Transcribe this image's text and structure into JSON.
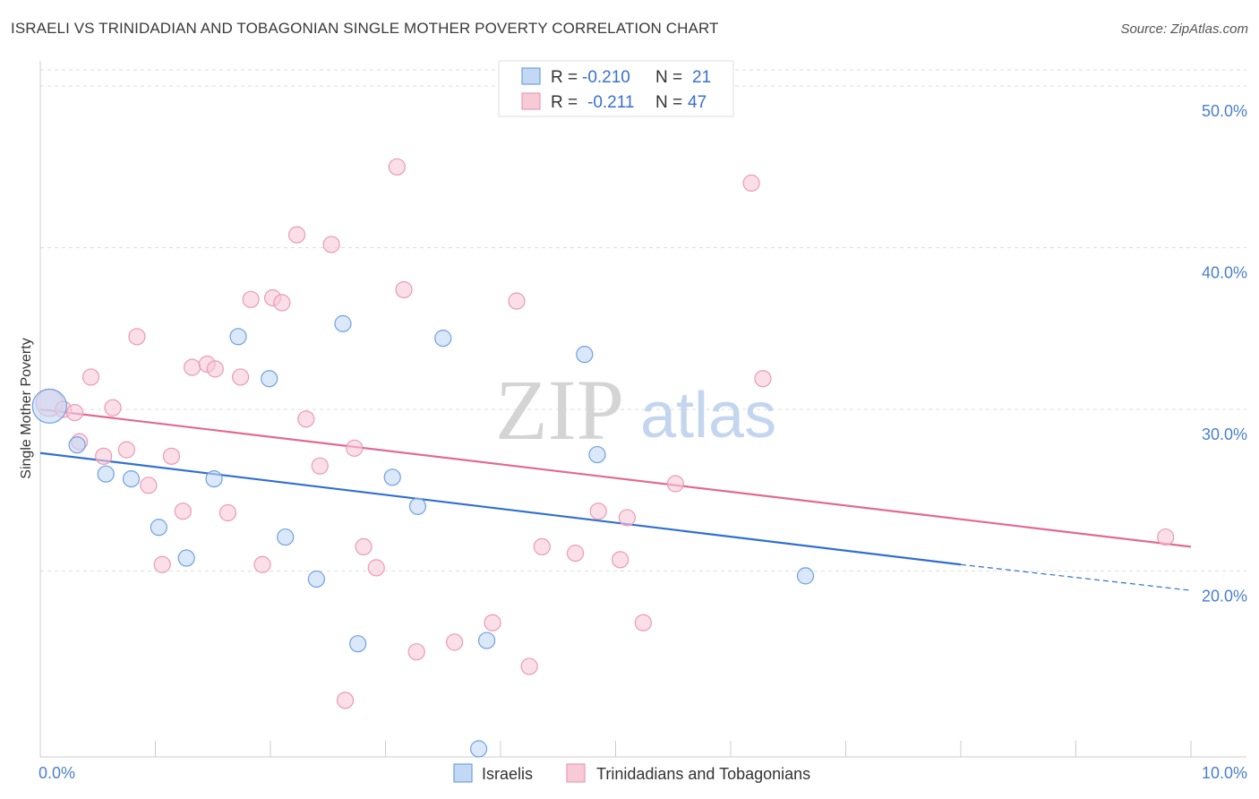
{
  "title": "ISRAELI VS TRINIDADIAN AND TOBAGONIAN SINGLE MOTHER POVERTY CORRELATION CHART",
  "source": "Source: ZipAtlas.com",
  "watermark": {
    "zip": "ZIP",
    "atlas": "atlas"
  },
  "chart_data": {
    "type": "scatter",
    "title": "ISRAELI VS TRINIDADIAN AND TOBAGONIAN SINGLE MOTHER POVERTY CORRELATION CHART",
    "xlabel": "",
    "ylabel": "Single Mother Poverty",
    "xlim": [
      0,
      10
    ],
    "ylim": [
      8.5,
      52
    ],
    "x_tick_labels": {
      "min": "0.0%",
      "max": "10.0%"
    },
    "y_ticks": [
      20,
      30,
      40,
      50
    ],
    "y_tick_labels": [
      "20.0%",
      "30.0%",
      "40.0%",
      "50.0%"
    ],
    "grid": true,
    "legend_position": "top-center",
    "series": [
      {
        "name": "Israelis",
        "color": "#6fa1e0",
        "fill": "#c3d8f5",
        "line_color": "#2f6fd0",
        "R": "-0.210",
        "N": "21",
        "trend": {
          "x0": 0,
          "y0": 27.3,
          "x1": 8.0,
          "y1": 20.4,
          "dash_to_x": 10,
          "dash_to_y": 18.8
        },
        "points": [
          [
            0.08,
            30.2
          ],
          [
            0.32,
            27.8
          ],
          [
            0.57,
            26.0
          ],
          [
            0.79,
            25.7
          ],
          [
            1.03,
            22.7
          ],
          [
            1.27,
            20.8
          ],
          [
            1.51,
            25.7
          ],
          [
            1.72,
            34.5
          ],
          [
            1.99,
            31.9
          ],
          [
            2.13,
            22.1
          ],
          [
            2.4,
            19.5
          ],
          [
            2.63,
            35.3
          ],
          [
            2.76,
            15.5
          ],
          [
            3.06,
            25.8
          ],
          [
            3.28,
            24.0
          ],
          [
            3.5,
            34.4
          ],
          [
            3.81,
            9.0
          ],
          [
            3.88,
            15.7
          ],
          [
            4.73,
            33.4
          ],
          [
            4.84,
            27.2
          ],
          [
            6.65,
            19.7
          ]
        ],
        "sizes": [
          38,
          18,
          18,
          18,
          18,
          18,
          18,
          18,
          18,
          18,
          18,
          18,
          18,
          18,
          18,
          18,
          18,
          18,
          18,
          18,
          18
        ]
      },
      {
        "name": "Trinidadians and Tobagonians",
        "color": "#ec9ab5",
        "fill": "#f7cad8",
        "line_color": "#e06a94",
        "R": "-0.211",
        "N": "47",
        "trend": {
          "x0": 0,
          "y0": 30.0,
          "x1": 10,
          "y1": 21.5
        },
        "points": [
          [
            0.08,
            30.4
          ],
          [
            0.2,
            30.0
          ],
          [
            0.3,
            29.8
          ],
          [
            0.34,
            28.0
          ],
          [
            0.44,
            32.0
          ],
          [
            0.55,
            27.1
          ],
          [
            0.63,
            30.1
          ],
          [
            0.75,
            27.5
          ],
          [
            0.84,
            34.5
          ],
          [
            0.94,
            25.3
          ],
          [
            1.06,
            20.4
          ],
          [
            1.14,
            27.1
          ],
          [
            1.24,
            23.7
          ],
          [
            1.32,
            32.6
          ],
          [
            1.45,
            32.8
          ],
          [
            1.52,
            32.5
          ],
          [
            1.63,
            23.6
          ],
          [
            1.74,
            32.0
          ],
          [
            1.83,
            36.8
          ],
          [
            1.93,
            20.4
          ],
          [
            2.02,
            36.9
          ],
          [
            2.1,
            36.6
          ],
          [
            2.23,
            40.8
          ],
          [
            2.31,
            29.4
          ],
          [
            2.43,
            26.5
          ],
          [
            2.53,
            40.2
          ],
          [
            2.65,
            12.0
          ],
          [
            2.73,
            27.6
          ],
          [
            2.81,
            21.5
          ],
          [
            2.92,
            20.2
          ],
          [
            3.1,
            45.0
          ],
          [
            3.16,
            37.4
          ],
          [
            3.27,
            15.0
          ],
          [
            3.6,
            15.6
          ],
          [
            3.93,
            16.8
          ],
          [
            4.14,
            36.7
          ],
          [
            4.25,
            14.1
          ],
          [
            4.36,
            21.5
          ],
          [
            4.65,
            21.1
          ],
          [
            4.85,
            23.7
          ],
          [
            5.04,
            20.7
          ],
          [
            5.1,
            23.3
          ],
          [
            5.24,
            16.8
          ],
          [
            5.52,
            25.4
          ],
          [
            6.18,
            44.0
          ],
          [
            6.28,
            31.9
          ],
          [
            9.78,
            22.1
          ]
        ],
        "sizes": [
          30,
          18,
          18,
          18,
          18,
          18,
          18,
          18,
          18,
          18,
          18,
          18,
          18,
          18,
          18,
          18,
          18,
          18,
          18,
          18,
          18,
          18,
          18,
          18,
          18,
          18,
          18,
          18,
          18,
          18,
          18,
          18,
          18,
          18,
          18,
          18,
          18,
          18,
          18,
          18,
          18,
          18,
          18,
          18,
          18,
          18,
          18
        ]
      }
    ]
  },
  "legend": {
    "r_label": "R =",
    "n_label": "N ="
  }
}
